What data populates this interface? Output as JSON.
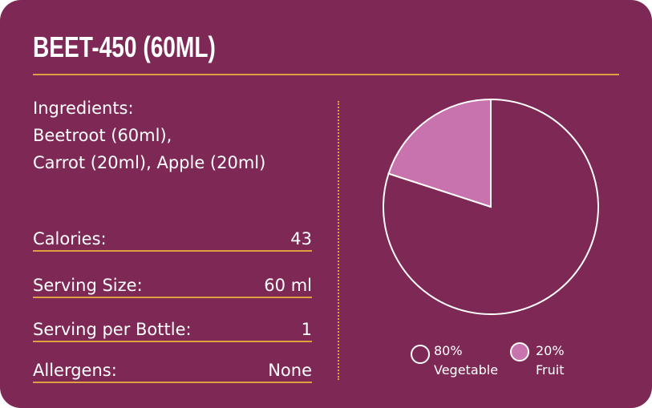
{
  "title": "BEET-450 (60ML)",
  "ingredients": {
    "label": "Ingredients:",
    "line1": "Beetroot (60ml),",
    "line2": "Carrot (20ml), Apple (20ml)"
  },
  "facts": [
    {
      "label": "Calories:",
      "value": "43"
    },
    {
      "label": "Serving Size:",
      "value": "60 ml"
    },
    {
      "label": "Serving per Bottle:",
      "value": "1"
    },
    {
      "label": "Allergens:",
      "value": "None"
    }
  ],
  "chart_data": {
    "type": "pie",
    "slices": [
      {
        "name": "Vegetable",
        "value": 80,
        "label": "80%",
        "color": "#7d2855"
      },
      {
        "name": "Fruit",
        "value": 20,
        "label": "20%",
        "color": "#c872ae"
      }
    ],
    "legend": "bottom"
  },
  "colors": {
    "background": "#7d2855",
    "accent": "#e0a040",
    "fruit": "#c872ae"
  }
}
